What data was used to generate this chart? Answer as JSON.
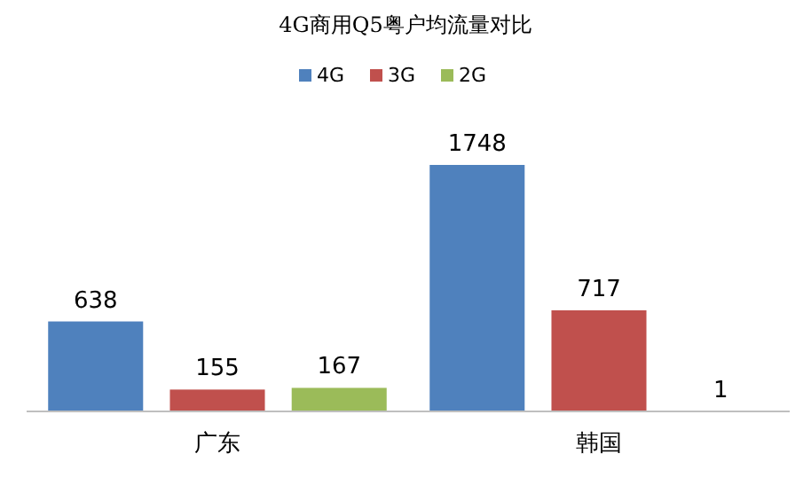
{
  "chart_data": {
    "type": "bar",
    "title": "4G商用Q5粤户均流量对比",
    "categories": [
      "广东",
      "韩国"
    ],
    "series": [
      {
        "name": "4G",
        "color": "#4f81bd",
        "values": [
          638,
          1748
        ]
      },
      {
        "name": "3G",
        "color": "#c0504d",
        "values": [
          155,
          717
        ]
      },
      {
        "name": "2G",
        "color": "#9bbb59",
        "values": [
          167,
          1
        ]
      }
    ],
    "data_labels": true,
    "legend": "top"
  }
}
